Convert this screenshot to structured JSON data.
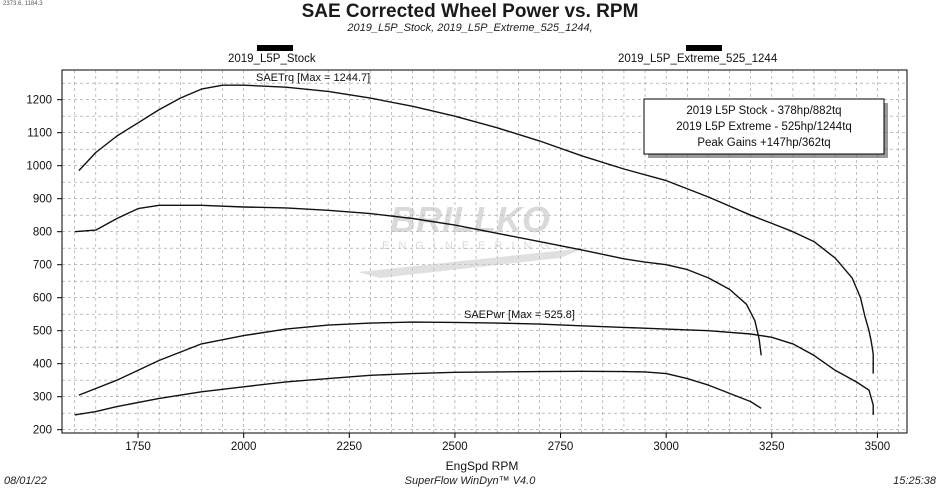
{
  "corner_text": "2373.6, 1184.3",
  "title": "SAE Corrected Wheel Power vs. RPM",
  "subtitle": "2019_L5P_Stock, 2019_L5P_Extreme_525_1244,",
  "runs": [
    {
      "name": "2019_L5P_Stock"
    },
    {
      "name": "2019_L5P_Extreme_525_1244"
    }
  ],
  "annotations": {
    "torque_max": "SAETrq [Max = 1244.7]",
    "power_max": "SAEPwr [Max = 525.8]"
  },
  "legend_box": {
    "lines": [
      "2019 L5P Stock - 378hp/882tq",
      "2019 L5P Extreme - 525hp/1244tq",
      "Peak Gains +147hp/362tq"
    ]
  },
  "watermark": {
    "main": "BRILLKO",
    "sub": "ENGINEERING"
  },
  "footer": {
    "date": "08/01/22",
    "software": "SuperFlow WinDyn™ V4.0",
    "time": "15:25:38"
  },
  "chart_data": {
    "type": "line",
    "xlabel": "EngSpd RPM",
    "xlim": [
      1570,
      3570
    ],
    "ylim": [
      190,
      1290
    ],
    "xticks": [
      1750,
      2000,
      2250,
      2500,
      2750,
      3000,
      3250,
      3500
    ],
    "yticks": [
      200,
      300,
      400,
      500,
      600,
      700,
      800,
      900,
      1000,
      1100,
      1200
    ],
    "grid": true,
    "series": [
      {
        "name": "SAETrq",
        "run": "2019_L5P_Extreme_525_1244",
        "points": [
          [
            1610,
            985
          ],
          [
            1650,
            1040
          ],
          [
            1700,
            1090
          ],
          [
            1750,
            1130
          ],
          [
            1800,
            1170
          ],
          [
            1850,
            1205
          ],
          [
            1900,
            1232
          ],
          [
            1950,
            1244
          ],
          [
            2000,
            1244
          ],
          [
            2100,
            1238
          ],
          [
            2200,
            1225
          ],
          [
            2300,
            1205
          ],
          [
            2400,
            1180
          ],
          [
            2500,
            1150
          ],
          [
            2600,
            1115
          ],
          [
            2700,
            1075
          ],
          [
            2800,
            1030
          ],
          [
            2900,
            990
          ],
          [
            3000,
            955
          ],
          [
            3100,
            905
          ],
          [
            3200,
            850
          ],
          [
            3250,
            825
          ],
          [
            3300,
            800
          ],
          [
            3350,
            770
          ],
          [
            3400,
            720
          ],
          [
            3440,
            660
          ],
          [
            3460,
            600
          ],
          [
            3470,
            545
          ],
          [
            3480,
            500
          ],
          [
            3485,
            470
          ],
          [
            3490,
            430
          ],
          [
            3490,
            370
          ]
        ]
      },
      {
        "name": "SAEPwr",
        "run": "2019_L5P_Extreme_525_1244",
        "points": [
          [
            1610,
            305
          ],
          [
            1700,
            350
          ],
          [
            1800,
            410
          ],
          [
            1900,
            460
          ],
          [
            2000,
            485
          ],
          [
            2100,
            505
          ],
          [
            2200,
            517
          ],
          [
            2300,
            523
          ],
          [
            2400,
            526
          ],
          [
            2500,
            525
          ],
          [
            2600,
            523
          ],
          [
            2700,
            520
          ],
          [
            2800,
            515
          ],
          [
            2900,
            510
          ],
          [
            3000,
            505
          ],
          [
            3100,
            500
          ],
          [
            3200,
            490
          ],
          [
            3250,
            480
          ],
          [
            3300,
            460
          ],
          [
            3350,
            425
          ],
          [
            3400,
            380
          ],
          [
            3450,
            345
          ],
          [
            3480,
            320
          ],
          [
            3490,
            275
          ],
          [
            3490,
            245
          ]
        ]
      },
      {
        "name": "SAETrq",
        "run": "2019_L5P_Stock",
        "points": [
          [
            1600,
            800
          ],
          [
            1650,
            805
          ],
          [
            1700,
            840
          ],
          [
            1750,
            870
          ],
          [
            1800,
            880
          ],
          [
            1900,
            880
          ],
          [
            2000,
            875
          ],
          [
            2100,
            872
          ],
          [
            2200,
            865
          ],
          [
            2300,
            855
          ],
          [
            2400,
            840
          ],
          [
            2500,
            820
          ],
          [
            2600,
            795
          ],
          [
            2700,
            770
          ],
          [
            2800,
            745
          ],
          [
            2900,
            718
          ],
          [
            2950,
            708
          ],
          [
            3000,
            700
          ],
          [
            3050,
            685
          ],
          [
            3100,
            660
          ],
          [
            3150,
            625
          ],
          [
            3190,
            580
          ],
          [
            3210,
            530
          ],
          [
            3220,
            475
          ],
          [
            3225,
            425
          ]
        ]
      },
      {
        "name": "SAEPwr",
        "run": "2019_L5P_Stock",
        "points": [
          [
            1600,
            245
          ],
          [
            1650,
            255
          ],
          [
            1700,
            270
          ],
          [
            1800,
            295
          ],
          [
            1900,
            315
          ],
          [
            2000,
            330
          ],
          [
            2100,
            345
          ],
          [
            2200,
            355
          ],
          [
            2300,
            365
          ],
          [
            2400,
            370
          ],
          [
            2500,
            374
          ],
          [
            2600,
            375
          ],
          [
            2700,
            376
          ],
          [
            2800,
            377
          ],
          [
            2900,
            376
          ],
          [
            2950,
            375
          ],
          [
            3000,
            370
          ],
          [
            3050,
            355
          ],
          [
            3100,
            335
          ],
          [
            3150,
            310
          ],
          [
            3200,
            285
          ],
          [
            3225,
            265
          ]
        ]
      }
    ]
  },
  "colors": {
    "line": "#111111",
    "grid": "#9a9a9a",
    "legend_bg": "#ffffff"
  }
}
